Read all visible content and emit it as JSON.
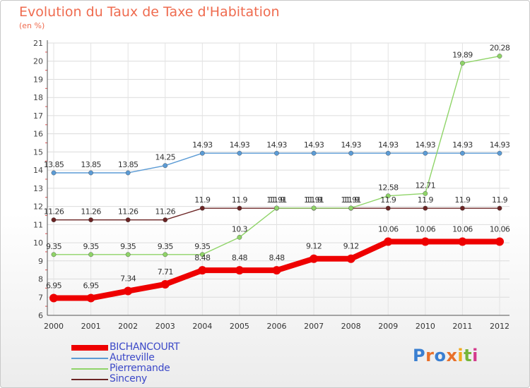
{
  "chart_data": {
    "type": "line",
    "title": "Evolution du Taux de Taxe d'Habitation",
    "subtitle": "(en %)",
    "xlabel": "",
    "ylabel": "",
    "categories": [
      "2000",
      "2001",
      "2002",
      "2003",
      "2004",
      "2005",
      "2006",
      "2007",
      "2008",
      "2009",
      "2010",
      "2011",
      "2012"
    ],
    "ylim": [
      6,
      21
    ],
    "yticks": [
      "6",
      "7",
      "8",
      "9",
      "10",
      "11",
      "12",
      "13",
      "14",
      "15",
      "16",
      "17",
      "18",
      "19",
      "20",
      "21"
    ],
    "grid": true,
    "series": [
      {
        "name": "BICHANCOURT",
        "color": "#ee0000",
        "values": [
          6.95,
          6.95,
          7.34,
          7.71,
          8.48,
          8.48,
          8.48,
          9.12,
          9.12,
          10.06,
          10.06,
          10.06,
          10.06
        ],
        "labels": [
          "6.95",
          "6.95",
          "7.34",
          "7.71",
          "8.48",
          "8.48",
          "8.48",
          "9.12",
          "9.12",
          "10.06",
          "10.06",
          "10.06",
          "10.06"
        ]
      },
      {
        "name": "Autreville",
        "color": "#5b9bd5",
        "values": [
          13.85,
          13.85,
          13.85,
          14.25,
          14.93,
          14.93,
          14.93,
          14.93,
          14.93,
          14.93,
          14.93,
          14.93,
          14.93
        ],
        "labels": [
          "13.85",
          "13.85",
          "13.85",
          "14.25",
          "14.93",
          "14.93",
          "14.93",
          "14.93",
          "14.93",
          "14.93",
          "14.93",
          "14.93",
          "14.93"
        ]
      },
      {
        "name": "Pierremande",
        "color": "#8fd468",
        "values": [
          9.35,
          9.35,
          9.35,
          9.35,
          9.35,
          10.3,
          11.91,
          11.91,
          11.91,
          12.58,
          12.71,
          19.89,
          20.28
        ],
        "labels": [
          "9.35",
          "9.35",
          "9.35",
          "9.35",
          "9.35",
          "10.3",
          "11.91",
          "11.91",
          "11.91",
          "12.58",
          "12.71",
          "19.89",
          "20.28"
        ]
      },
      {
        "name": "Sinceny",
        "color": "#6b2424",
        "values": [
          11.26,
          11.26,
          11.26,
          11.26,
          11.9,
          11.9,
          11.9,
          11.9,
          11.9,
          11.9,
          11.9,
          11.9,
          11.9
        ],
        "labels": [
          "11.26",
          "11.26",
          "11.26",
          "11.26",
          "11.9",
          "11.9",
          "11.9",
          "11.9",
          "11.9",
          "11.9",
          "11.9",
          "11.9",
          "11.9"
        ]
      }
    ]
  },
  "logo": {
    "letters": [
      "P",
      "r",
      "o",
      "x",
      "i",
      "t",
      "i"
    ],
    "colors": [
      "#3a7fd1",
      "#e8702a",
      "#3a7fd1",
      "#e8702a",
      "#f2a91e",
      "#74b63a",
      "#d43b8c"
    ]
  }
}
